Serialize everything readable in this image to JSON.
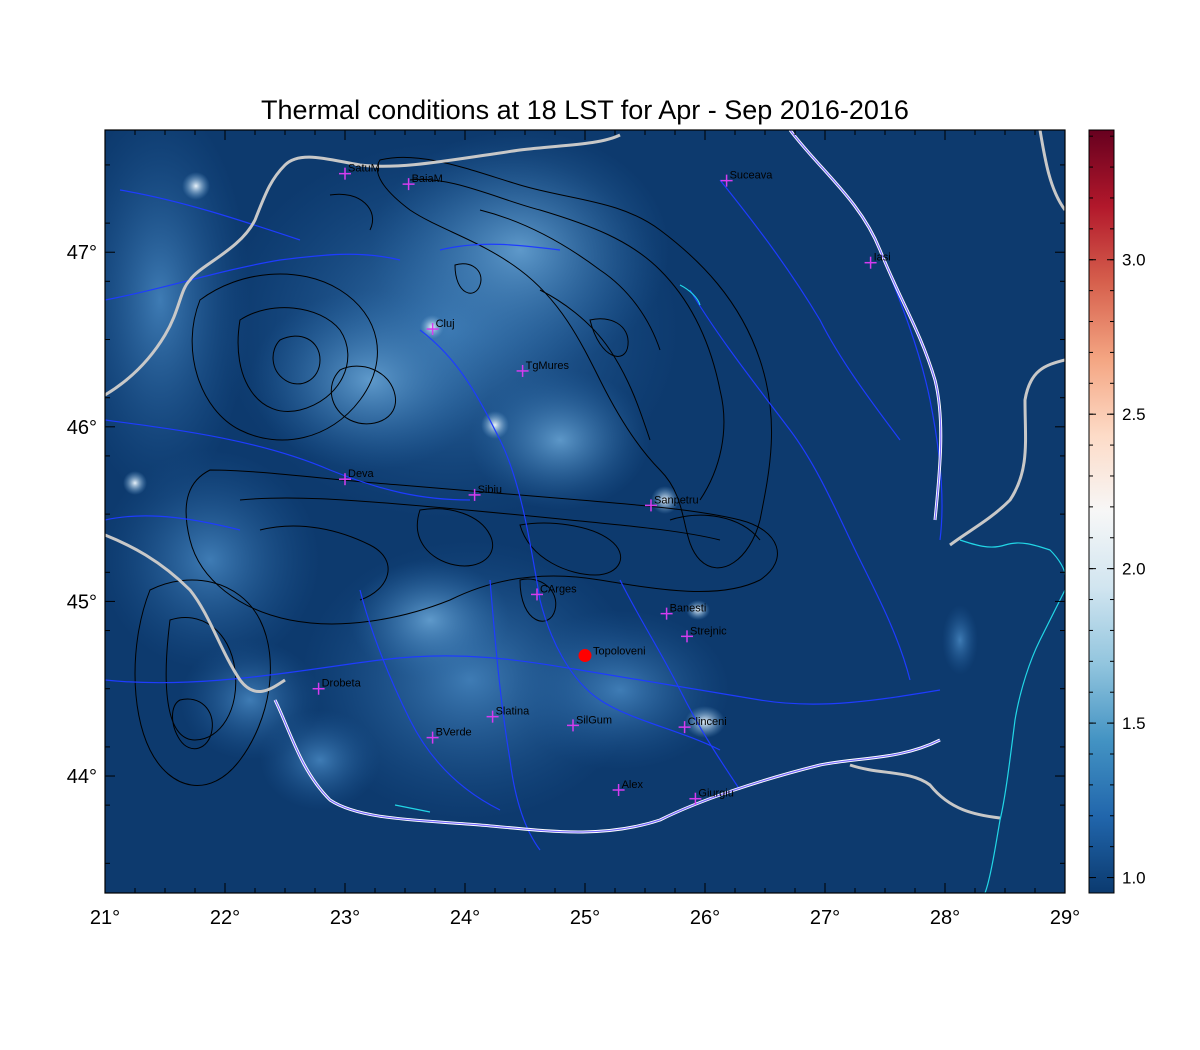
{
  "title": "Thermal conditions at 18 LST for Apr - Sep  2016-2016",
  "map": {
    "lon_range": [
      21,
      29
    ],
    "lat_range": [
      43.33,
      47.7
    ],
    "lon_ticks": [
      {
        "value": 21,
        "label": "21°"
      },
      {
        "value": 22,
        "label": "22°"
      },
      {
        "value": 23,
        "label": "23°"
      },
      {
        "value": 24,
        "label": "24°"
      },
      {
        "value": 25,
        "label": "25°"
      },
      {
        "value": 26,
        "label": "26°"
      },
      {
        "value": 27,
        "label": "27°"
      },
      {
        "value": 28,
        "label": "28°"
      },
      {
        "value": 29,
        "label": "29°"
      }
    ],
    "lat_ticks": [
      {
        "value": 44,
        "label": "44°"
      },
      {
        "value": 45,
        "label": "45°"
      },
      {
        "value": 46,
        "label": "46°"
      },
      {
        "value": 47,
        "label": "47°"
      }
    ],
    "background_color": "#0d3a6e",
    "highlight_location": {
      "name": "Topoloveni",
      "lon": 25.0,
      "lat": 44.69,
      "color": "#ff0000"
    },
    "stations": [
      {
        "name": "SatuM",
        "lon": 23.0,
        "lat": 47.45
      },
      {
        "name": "BaiaM",
        "lon": 23.53,
        "lat": 47.39
      },
      {
        "name": "Suceava",
        "lon": 26.18,
        "lat": 47.41
      },
      {
        "name": "Iasi",
        "lon": 27.38,
        "lat": 46.94
      },
      {
        "name": "Cluj",
        "lon": 23.73,
        "lat": 46.56
      },
      {
        "name": "TgMures",
        "lon": 24.48,
        "lat": 46.32
      },
      {
        "name": "Deva",
        "lon": 23.0,
        "lat": 45.7
      },
      {
        "name": "Sibiu",
        "lon": 24.08,
        "lat": 45.61
      },
      {
        "name": "Sanpetru",
        "lon": 25.55,
        "lat": 45.55
      },
      {
        "name": "CArges",
        "lon": 24.6,
        "lat": 45.04
      },
      {
        "name": "Banesti",
        "lon": 25.68,
        "lat": 44.93
      },
      {
        "name": "Strejnic",
        "lon": 25.85,
        "lat": 44.8
      },
      {
        "name": "Drobeta",
        "lon": 22.78,
        "lat": 44.5
      },
      {
        "name": "Slatina",
        "lon": 24.23,
        "lat": 44.34
      },
      {
        "name": "SilGum",
        "lon": 24.9,
        "lat": 44.29
      },
      {
        "name": "Clinceni",
        "lon": 25.83,
        "lat": 44.28
      },
      {
        "name": "BVerde",
        "lon": 23.73,
        "lat": 44.22
      },
      {
        "name": "Alex",
        "lon": 25.28,
        "lat": 43.92
      },
      {
        "name": "Giurgiu",
        "lon": 25.92,
        "lat": 43.87
      }
    ]
  },
  "colorbar": {
    "min": 0.95,
    "max": 3.42,
    "ticks": [
      {
        "value": 1.0,
        "label": "1.0"
      },
      {
        "value": 1.5,
        "label": "1.5"
      },
      {
        "value": 2.0,
        "label": "2.0"
      },
      {
        "value": 2.5,
        "label": "2.5"
      },
      {
        "value": 3.0,
        "label": "3.0"
      }
    ],
    "stops": [
      "#0b3a6f",
      "#2166ac",
      "#4393c3",
      "#92c5de",
      "#d1e5f0",
      "#f7f7f7",
      "#fddbc7",
      "#f4a582",
      "#d6604d",
      "#b2182b",
      "#67001f"
    ]
  }
}
